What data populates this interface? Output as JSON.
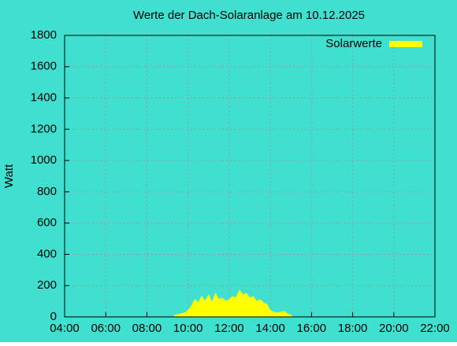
{
  "chart_data": {
    "type": "area",
    "title": "Werte der Dach-Solaranlage am 10.12.2025",
    "y_label": "Watt",
    "x": [
      "09:20",
      "09:30",
      "09:40",
      "09:50",
      "10:00",
      "10:10",
      "10:20",
      "10:30",
      "10:40",
      "10:50",
      "11:00",
      "11:10",
      "11:20",
      "11:30",
      "11:40",
      "11:50",
      "12:00",
      "12:10",
      "12:20",
      "12:30",
      "12:40",
      "12:50",
      "13:00",
      "13:10",
      "13:20",
      "13:30",
      "13:40",
      "13:50",
      "14:00",
      "14:10",
      "14:20",
      "14:30",
      "14:40",
      "14:50",
      "15:00",
      "15:05"
    ],
    "series": [
      {
        "name": "Solarwerte",
        "color": "#ffff00",
        "values": [
          10,
          15,
          20,
          25,
          40,
          70,
          110,
          90,
          130,
          100,
          140,
          90,
          150,
          110,
          120,
          100,
          110,
          130,
          120,
          170,
          140,
          150,
          120,
          130,
          100,
          110,
          90,
          80,
          40,
          30,
          25,
          30,
          35,
          20,
          10,
          0
        ]
      }
    ],
    "xlim": [
      "04:00",
      "22:00"
    ],
    "xticks": [
      "04:00",
      "06:00",
      "08:00",
      "10:00",
      "12:00",
      "14:00",
      "16:00",
      "18:00",
      "20:00",
      "22:00"
    ],
    "ylim": [
      0,
      1800
    ],
    "yticks": [
      0,
      200,
      400,
      600,
      800,
      1000,
      1200,
      1400,
      1600,
      1800
    ],
    "grid": true,
    "legend": "top-right",
    "background": "#40e0d0"
  }
}
